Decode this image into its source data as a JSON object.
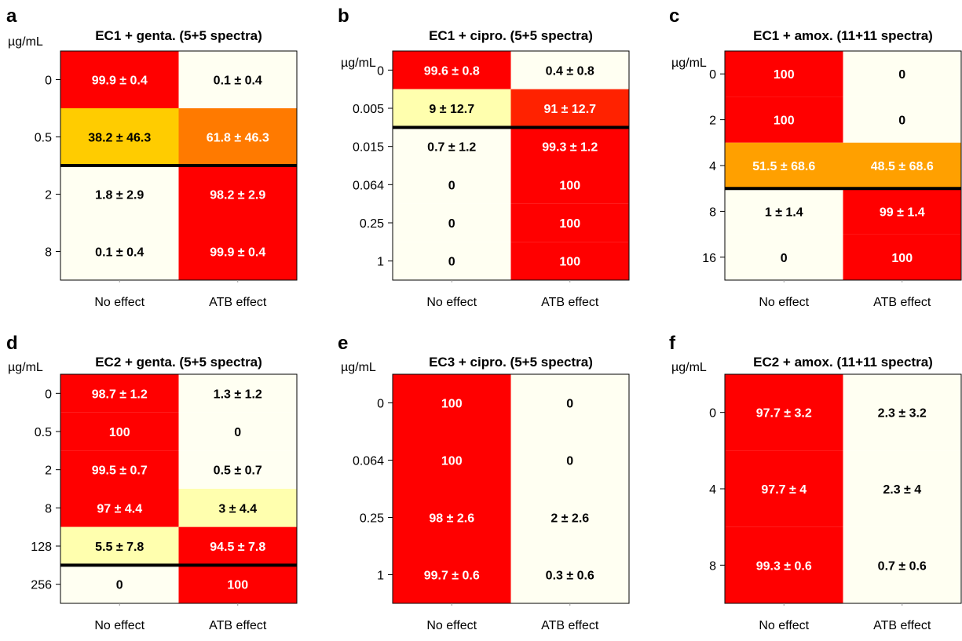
{
  "colors": {
    "cell_scale": [
      "#FFFFF2",
      "#FFFFAE",
      "#FFCC00",
      "#FFA000",
      "#FF7A00",
      "#FF2200",
      "#FF0000"
    ],
    "text_dark": "#000000",
    "text_light": "#FFFFFF",
    "threshold_line": "#000000"
  },
  "chart_data": [
    {
      "type": "heatmap",
      "panel": "a",
      "title": "EC1 + genta. (5+5 spectra)",
      "unit": "µg/mL",
      "columns": [
        "No effect",
        "ATB effect"
      ],
      "rows": [
        "0",
        "0.5",
        "2",
        "8"
      ],
      "values": [
        [
          99.9,
          0.1
        ],
        [
          38.2,
          61.8
        ],
        [
          1.8,
          98.2
        ],
        [
          0.1,
          99.9
        ]
      ],
      "labels": [
        [
          "99.9 ± 0.4",
          "0.1 ± 0.4"
        ],
        [
          "38.2 ± 46.3",
          "61.8 ± 46.3"
        ],
        [
          "1.8 ± 2.9",
          "98.2 ± 2.9"
        ],
        [
          "0.1 ± 0.4",
          "99.9 ± 0.4"
        ]
      ],
      "threshold_after_row": 1
    },
    {
      "type": "heatmap",
      "panel": "b",
      "title": "EC1 + cipro. (5+5 spectra)",
      "unit": "µg/mL",
      "columns": [
        "No effect",
        "ATB effect"
      ],
      "rows": [
        "0",
        "0.005",
        "0.015",
        "0.064",
        "0.25",
        "1"
      ],
      "values": [
        [
          99.6,
          0.4
        ],
        [
          9,
          91
        ],
        [
          0.7,
          99.3
        ],
        [
          0,
          100
        ],
        [
          0,
          100
        ],
        [
          0,
          100
        ]
      ],
      "labels": [
        [
          "99.6 ± 0.8",
          "0.4 ± 0.8"
        ],
        [
          "9 ± 12.7",
          "91 ± 12.7"
        ],
        [
          "0.7 ± 1.2",
          "99.3 ± 1.2"
        ],
        [
          "0",
          "100"
        ],
        [
          "0",
          "100"
        ],
        [
          "0",
          "100"
        ]
      ],
      "threshold_after_row": 1
    },
    {
      "type": "heatmap",
      "panel": "c",
      "title": "EC1 + amox. (11+11 spectra)",
      "unit": "µg/mL",
      "columns": [
        "No effect",
        "ATB effect"
      ],
      "rows": [
        "0",
        "2",
        "4",
        "8",
        "16"
      ],
      "values": [
        [
          100,
          0
        ],
        [
          100,
          0
        ],
        [
          51.5,
          48.5
        ],
        [
          1,
          99
        ],
        [
          0,
          100
        ]
      ],
      "labels": [
        [
          "100",
          "0"
        ],
        [
          "100",
          "0"
        ],
        [
          "51.5 ± 68.6",
          "48.5 ± 68.6"
        ],
        [
          "1 ± 1.4",
          "99 ± 1.4"
        ],
        [
          "0",
          "100"
        ]
      ],
      "threshold_after_row": 2
    },
    {
      "type": "heatmap",
      "panel": "d",
      "title": "EC2 + genta. (5+5 spectra)",
      "unit": "µg/mL",
      "columns": [
        "No effect",
        "ATB effect"
      ],
      "rows": [
        "0",
        "0.5",
        "2",
        "8",
        "128",
        "256"
      ],
      "values": [
        [
          98.7,
          1.3
        ],
        [
          100,
          0
        ],
        [
          99.5,
          0.5
        ],
        [
          97,
          3
        ],
        [
          5.5,
          94.5
        ],
        [
          0,
          100
        ]
      ],
      "labels": [
        [
          "98.7 ± 1.2",
          "1.3 ± 1.2"
        ],
        [
          "100",
          "0"
        ],
        [
          "99.5 ± 0.7",
          "0.5 ± 0.7"
        ],
        [
          "97 ± 4.4",
          "3 ± 4.4"
        ],
        [
          "5.5 ± 7.8",
          "94.5 ± 7.8"
        ],
        [
          "0",
          "100"
        ]
      ],
      "threshold_after_row": 4
    },
    {
      "type": "heatmap",
      "panel": "e",
      "title": "EC3 + cipro. (5+5 spectra)",
      "unit": "µg/mL",
      "columns": [
        "No effect",
        "ATB effect"
      ],
      "rows": [
        "0",
        "0.064",
        "0.25",
        "1"
      ],
      "values": [
        [
          100,
          0
        ],
        [
          100,
          0
        ],
        [
          98,
          2
        ],
        [
          99.7,
          0.3
        ]
      ],
      "labels": [
        [
          "100",
          "0"
        ],
        [
          "100",
          "0"
        ],
        [
          "98 ± 2.6",
          "2 ± 2.6"
        ],
        [
          "99.7 ± 0.6",
          "0.3 ± 0.6"
        ]
      ],
      "threshold_after_row": null
    },
    {
      "type": "heatmap",
      "panel": "f",
      "title": "EC2 + amox. (11+11 spectra)",
      "unit": "µg/mL",
      "columns": [
        "No effect",
        "ATB effect"
      ],
      "rows": [
        "0",
        "4",
        "8"
      ],
      "values": [
        [
          97.7,
          2.3
        ],
        [
          97.7,
          2.3
        ],
        [
          99.3,
          0.7
        ]
      ],
      "labels": [
        [
          "97.7 ± 3.2",
          "2.3 ± 3.2"
        ],
        [
          "97.7 ± 4",
          "2.3 ± 4"
        ],
        [
          "99.3 ± 0.6",
          "0.7 ± 0.6"
        ]
      ],
      "threshold_after_row": null
    }
  ]
}
